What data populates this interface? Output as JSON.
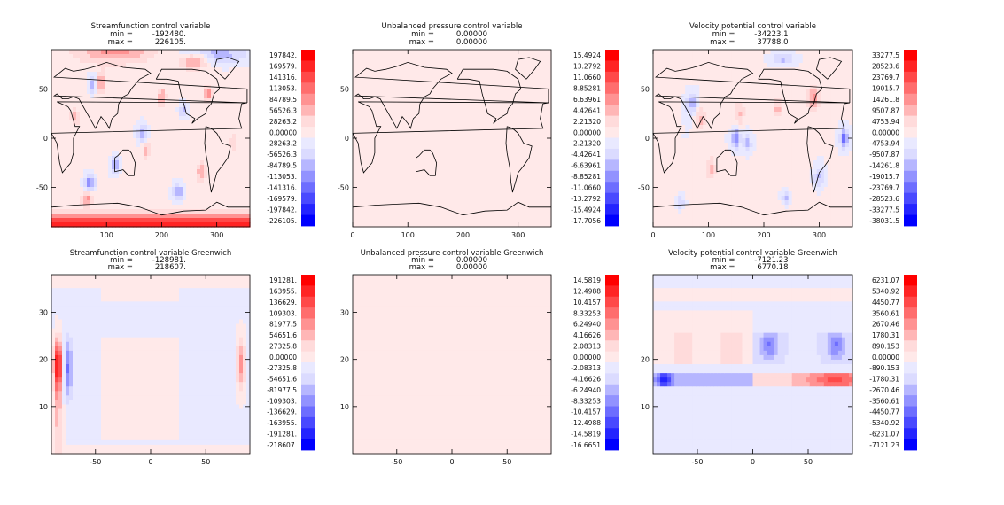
{
  "chart_data": [
    {
      "type": "heatmap",
      "title": "Streamfunction control variable",
      "stats": {
        "min_label": "min =",
        "min_value": "-192480.",
        "max_label": "max =",
        "max_value": "226105."
      },
      "xticks": [
        "100",
        "200",
        "300"
      ],
      "yticks": [
        "50",
        "0",
        "-50"
      ],
      "xlim": [
        0,
        360
      ],
      "ylim": [
        -90,
        90
      ],
      "colorbar": [
        "197842.",
        "169579.",
        "141316.",
        "113053.",
        "84789.5",
        "56526.3",
        "28263.2",
        "0.00000",
        "-28263.2",
        "-56526.3",
        "-84789.5",
        "-113053.",
        "-141316.",
        "-169579.",
        "-197842.",
        "-226105."
      ],
      "coastlines": true,
      "field": "streamfunction"
    },
    {
      "type": "heatmap",
      "title": "Unbalanced pressure control variable",
      "stats": {
        "min_label": "min =",
        "min_value": "0.00000",
        "max_label": "max =",
        "max_value": "0.00000"
      },
      "xticks": [
        "0",
        "100",
        "200",
        "300"
      ],
      "yticks": [
        "50",
        "0",
        "-50"
      ],
      "xlim": [
        0,
        360
      ],
      "ylim": [
        -90,
        90
      ],
      "colorbar": [
        "15.4924",
        "13.2792",
        "11.0660",
        "8.85281",
        "6.63961",
        "4.42641",
        "2.21320",
        "0.00000",
        "-2.21320",
        "-4.42641",
        "-6.63961",
        "-8.85281",
        "-11.0660",
        "-13.2792",
        "-15.4924",
        "-17.7056"
      ],
      "coastlines": true,
      "field": "uniform"
    },
    {
      "type": "heatmap",
      "title": "Velocity potential control variable",
      "stats": {
        "min_label": "min =",
        "min_value": "-34223.1",
        "max_label": "max =",
        "max_value": "37788.0"
      },
      "xticks": [
        "0",
        "100",
        "200",
        "300"
      ],
      "yticks": [
        "50",
        "0",
        "-50"
      ],
      "xlim": [
        0,
        360
      ],
      "ylim": [
        -90,
        90
      ],
      "colorbar": [
        "33277.5",
        "28523.6",
        "23769.7",
        "19015.7",
        "14261.8",
        "9507.87",
        "4753.94",
        "0.00000",
        "-4753.94",
        "-9507.87",
        "-14261.8",
        "-19015.7",
        "-23769.7",
        "-28523.6",
        "-33277.5",
        "-38031.5"
      ],
      "coastlines": true,
      "field": "velpot"
    },
    {
      "type": "heatmap",
      "title": "Streamfunction control variable Greenwich",
      "stats": {
        "min_label": "min =",
        "min_value": "-128981.",
        "max_label": "max =",
        "max_value": "218607."
      },
      "xticks": [
        "-50",
        "0",
        "50"
      ],
      "yticks": [
        "30",
        "20",
        "10"
      ],
      "xlim": [
        -90,
        90
      ],
      "ylim": [
        0,
        38
      ],
      "colorbar": [
        "191281.",
        "163955.",
        "136629.",
        "109303.",
        "81977.5",
        "54651.6",
        "27325.8",
        "0.00000",
        "-27325.8",
        "-54651.6",
        "-81977.5",
        "-109303.",
        "-136629.",
        "-163955.",
        "-191281.",
        "-218607."
      ],
      "coastlines": false,
      "field": "sf_greenwich"
    },
    {
      "type": "heatmap",
      "title": "Unbalanced pressure control variable Greenwich",
      "stats": {
        "min_label": "min =",
        "min_value": "0.00000",
        "max_label": "max =",
        "max_value": "0.00000"
      },
      "xticks": [
        "-50",
        "0",
        "50"
      ],
      "yticks": [
        "30",
        "20",
        "10"
      ],
      "xlim": [
        -90,
        90
      ],
      "ylim": [
        0,
        38
      ],
      "colorbar": [
        "14.5819",
        "12.4988",
        "10.4157",
        "8.33253",
        "6.24940",
        "4.16626",
        "2.08313",
        "0.00000",
        "-2.08313",
        "-4.16626",
        "-6.24940",
        "-8.33253",
        "-10.4157",
        "-12.4988",
        "-14.5819",
        "-16.6651"
      ],
      "coastlines": false,
      "field": "uniform"
    },
    {
      "type": "heatmap",
      "title": "Velocity potential control variable Greenwich",
      "stats": {
        "min_label": "min =",
        "min_value": "-7121.23",
        "max_label": "max =",
        "max_value": "6770.18"
      },
      "xticks": [
        "-50",
        "0",
        "50"
      ],
      "yticks": [
        "20",
        "10"
      ],
      "xlim": [
        -90,
        90
      ],
      "ylim": [
        0,
        38
      ],
      "colorbar": [
        "6231.07",
        "5340.92",
        "4450.77",
        "3560.61",
        "2670.46",
        "1780.31",
        "890.153",
        "0.00000",
        "-890.153",
        "-1780.31",
        "-2670.46",
        "-3560.61",
        "-4450.77",
        "-5340.92",
        "-6231.07",
        "-7121.23"
      ],
      "coastlines": false,
      "field": "vp_greenwich"
    }
  ]
}
